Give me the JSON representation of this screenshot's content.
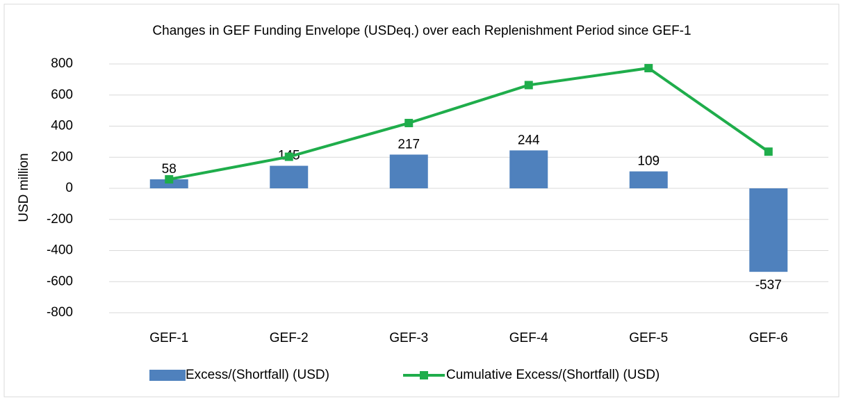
{
  "chart_data": {
    "type": "combo",
    "title": "Changes in GEF Funding Envelope (USDeq.) over each Replenishment Period since GEF-1",
    "y_label": "USD million",
    "categories": [
      "GEF-1",
      "GEF-2",
      "GEF-3",
      "GEF-4",
      "GEF-5",
      "GEF-6"
    ],
    "series": [
      {
        "name": "Excess/(Shortfall) (USD)",
        "type": "bar",
        "color": "#4f81bd",
        "values": [
          58,
          145,
          217,
          244,
          109,
          -537
        ],
        "data_labels": true
      },
      {
        "name": "Cumulative Excess/(Shortfall) (USD)",
        "type": "line",
        "color": "#1fad4b",
        "values": [
          58,
          203,
          420,
          664,
          773,
          236
        ],
        "data_labels": false
      }
    ],
    "ylim": [
      -800,
      800
    ],
    "yticks": [
      -800,
      -600,
      -400,
      -200,
      0,
      200,
      400,
      600,
      800
    ],
    "grid": true,
    "legend": "bottom"
  }
}
